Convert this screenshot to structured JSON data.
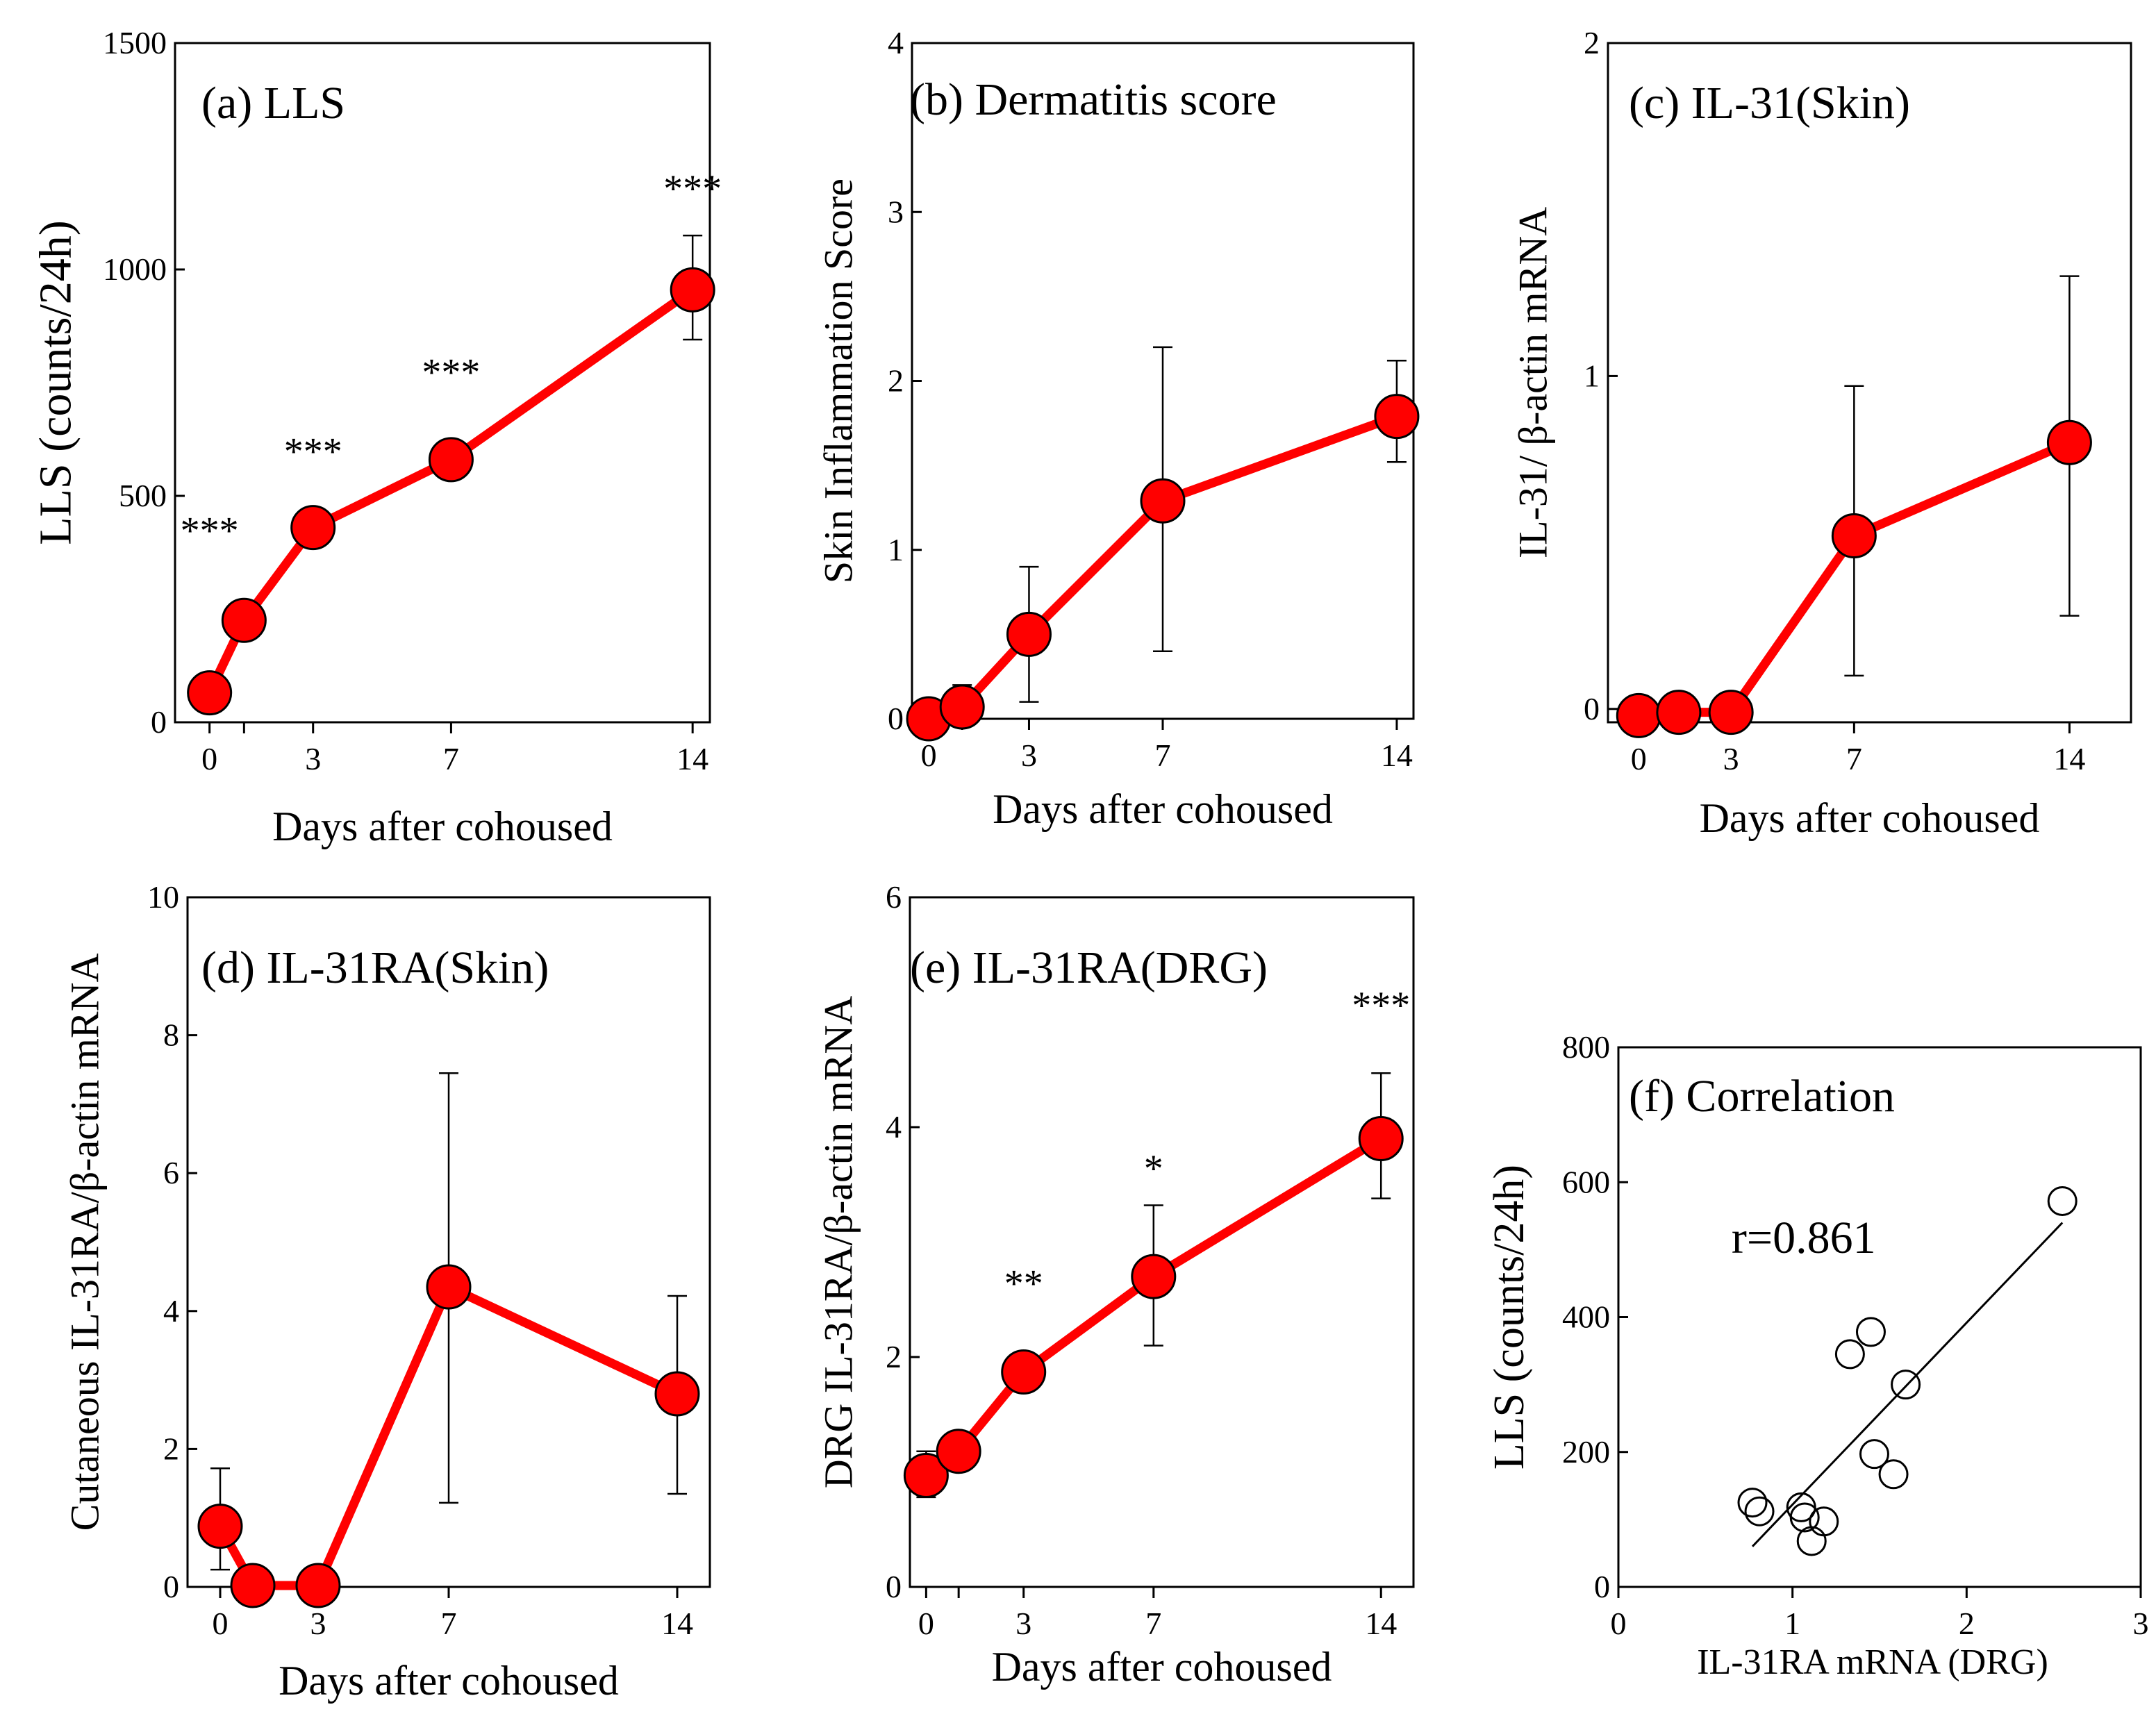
{
  "figure": {
    "title": "Multi-panel figure: LLS, dermatitis score, IL-31 and IL-31RA expression after cohousing, and correlation",
    "colors": {
      "series": "#ff0000",
      "marker": "#ff0000",
      "ink": "#000000",
      "background": "#ffffff"
    }
  },
  "chart_data": [
    {
      "id": "a",
      "type": "line",
      "title": "(a) LLS",
      "xlabel": "Days after cohoused",
      "ylabel": "LLS (counts/24h)",
      "xlim": [
        -1,
        14.5
      ],
      "ylim": [
        0,
        1500
      ],
      "xticks": [
        0,
        3,
        7,
        14
      ],
      "xtick_labels": [
        "0",
        "3",
        "7",
        "14"
      ],
      "yticks": [
        0,
        500,
        1000,
        1500
      ],
      "ytick_labels": [
        "0",
        "500",
        "1000",
        "1500"
      ],
      "minor_xticks": [
        1
      ],
      "series": [
        {
          "name": "LLS",
          "x": [
            0,
            1,
            3,
            7,
            14
          ],
          "y": [
            65,
            225,
            430,
            580,
            955
          ],
          "err_low": [
            null,
            null,
            null,
            null,
            845
          ],
          "err_high": [
            null,
            null,
            null,
            null,
            1075
          ]
        }
      ],
      "annotations": [
        {
          "x": 0,
          "y": 395,
          "text": "***"
        },
        {
          "x": 3,
          "y": 570,
          "text": "***"
        },
        {
          "x": 7,
          "y": 745,
          "text": "***"
        },
        {
          "x": 14,
          "y": 1150,
          "text": "***"
        }
      ]
    },
    {
      "id": "b",
      "type": "line",
      "title": "(b) Dermatitis score",
      "xlabel": "Days after cohoused",
      "ylabel": "Skin Inflammation Score",
      "xlim": [
        -0.5,
        14.5
      ],
      "ylim": [
        0,
        4
      ],
      "xticks": [
        0,
        3,
        7,
        14
      ],
      "xtick_labels": [
        "0",
        "3",
        "7",
        "14"
      ],
      "yticks": [
        0,
        1,
        2,
        3,
        4
      ],
      "ytick_labels": [
        "0",
        "1",
        "2",
        "3",
        "4"
      ],
      "minor_xticks": [
        1
      ],
      "series": [
        {
          "name": "Dermatitis score",
          "x": [
            0,
            1,
            3,
            7,
            14
          ],
          "y": [
            0.0,
            0.07,
            0.5,
            1.29,
            1.79
          ],
          "err_low": [
            null,
            0.0,
            0.1,
            0.4,
            1.52
          ],
          "err_high": [
            null,
            0.2,
            0.9,
            2.2,
            2.12
          ]
        }
      ],
      "annotations": []
    },
    {
      "id": "c",
      "type": "line",
      "title": "(c) IL-31(Skin)",
      "xlabel": "Days after cohoused",
      "ylabel": "IL-31/ β-actin mRNA",
      "xlim": [
        -1,
        16
      ],
      "ylim": [
        -0.04,
        2
      ],
      "xticks": [
        0,
        3,
        7,
        14
      ],
      "xtick_labels": [
        "0",
        "3",
        "7",
        "14"
      ],
      "yticks": [
        0,
        1,
        2
      ],
      "ytick_labels": [
        "0",
        "1",
        "2"
      ],
      "minor_xticks": [],
      "series": [
        {
          "name": "IL-31",
          "x": [
            0,
            1.3,
            3,
            7,
            14
          ],
          "y": [
            -0.02,
            -0.01,
            -0.01,
            0.52,
            0.8
          ],
          "err_low": [
            null,
            null,
            null,
            0.1,
            0.28
          ],
          "err_high": [
            null,
            null,
            null,
            0.97,
            1.3
          ]
        }
      ],
      "annotations": []
    },
    {
      "id": "d",
      "type": "line",
      "title": "(d) IL-31RA(Skin)",
      "xlabel": "Days after cohoused",
      "ylabel": "Cutaneous IL-31RA/β-actin mRNA",
      "xlim": [
        -1,
        15
      ],
      "ylim": [
        0,
        10
      ],
      "xticks": [
        0,
        3,
        7,
        14
      ],
      "xtick_labels": [
        "0",
        "3",
        "7",
        "14"
      ],
      "yticks": [
        0,
        2,
        4,
        6,
        8,
        10
      ],
      "ytick_labels": [
        "0",
        "2",
        "4",
        "6",
        "8",
        "10"
      ],
      "minor_xticks": [],
      "series": [
        {
          "name": "IL-31RA skin",
          "x": [
            0,
            1,
            3,
            7,
            14
          ],
          "y": [
            0.88,
            0.02,
            0.02,
            4.35,
            2.8
          ],
          "err_low": [
            0.25,
            null,
            null,
            1.22,
            1.35
          ],
          "err_high": [
            1.72,
            null,
            null,
            7.45,
            4.22
          ]
        }
      ],
      "annotations": []
    },
    {
      "id": "e",
      "type": "line",
      "title": "(e) IL-31RA(DRG)",
      "xlabel": "Days after cohoused",
      "ylabel": "DRG IL-31RA/β-actin mRNA",
      "xlim": [
        -0.5,
        15
      ],
      "ylim": [
        0,
        6
      ],
      "xticks": [
        0,
        3,
        7,
        14
      ],
      "xtick_labels": [
        "0",
        "3",
        "7",
        "14"
      ],
      "yticks": [
        0,
        2,
        4,
        6
      ],
      "ytick_labels": [
        "0",
        "2",
        "4",
        "6"
      ],
      "minor_xticks": [
        1
      ],
      "series": [
        {
          "name": "IL-31RA DRG",
          "x": [
            0,
            1,
            3,
            7,
            14
          ],
          "y": [
            0.97,
            1.18,
            1.87,
            2.7,
            3.9
          ],
          "err_low": [
            0.78,
            null,
            null,
            2.1,
            3.38
          ],
          "err_high": [
            1.18,
            null,
            null,
            3.32,
            4.47
          ]
        }
      ],
      "annotations": [
        {
          "x": 3,
          "y": 2.53,
          "text": "**"
        },
        {
          "x": 7,
          "y": 3.53,
          "text": "*"
        },
        {
          "x": 14,
          "y": 4.95,
          "text": "***"
        }
      ]
    },
    {
      "id": "f",
      "type": "scatter",
      "title": "(f) Correlation",
      "xlabel": "IL-31RA mRNA (DRG)",
      "ylabel": "LLS (counts/24h)",
      "xlim": [
        0,
        3
      ],
      "ylim": [
        0,
        800
      ],
      "xticks": [
        0,
        1,
        2,
        3
      ],
      "xtick_labels": [
        "0",
        "1",
        "2",
        "3"
      ],
      "yticks": [
        0,
        200,
        400,
        600,
        800
      ],
      "ytick_labels": [
        "0",
        "200",
        "400",
        "600",
        "800"
      ],
      "points": {
        "x": [
          0.77,
          0.81,
          1.05,
          1.07,
          1.11,
          1.18,
          1.33,
          1.45,
          1.47,
          1.58,
          1.65,
          2.55
        ],
        "y": [
          125,
          112,
          118,
          103,
          68,
          97,
          345,
          378,
          197,
          167,
          300,
          572
        ]
      },
      "fit_line": {
        "x": [
          0.77,
          2.55
        ],
        "y": [
          60,
          540
        ]
      },
      "annotations": [
        {
          "x": 0.65,
          "y": 495,
          "text": "r=0.861"
        }
      ]
    }
  ]
}
